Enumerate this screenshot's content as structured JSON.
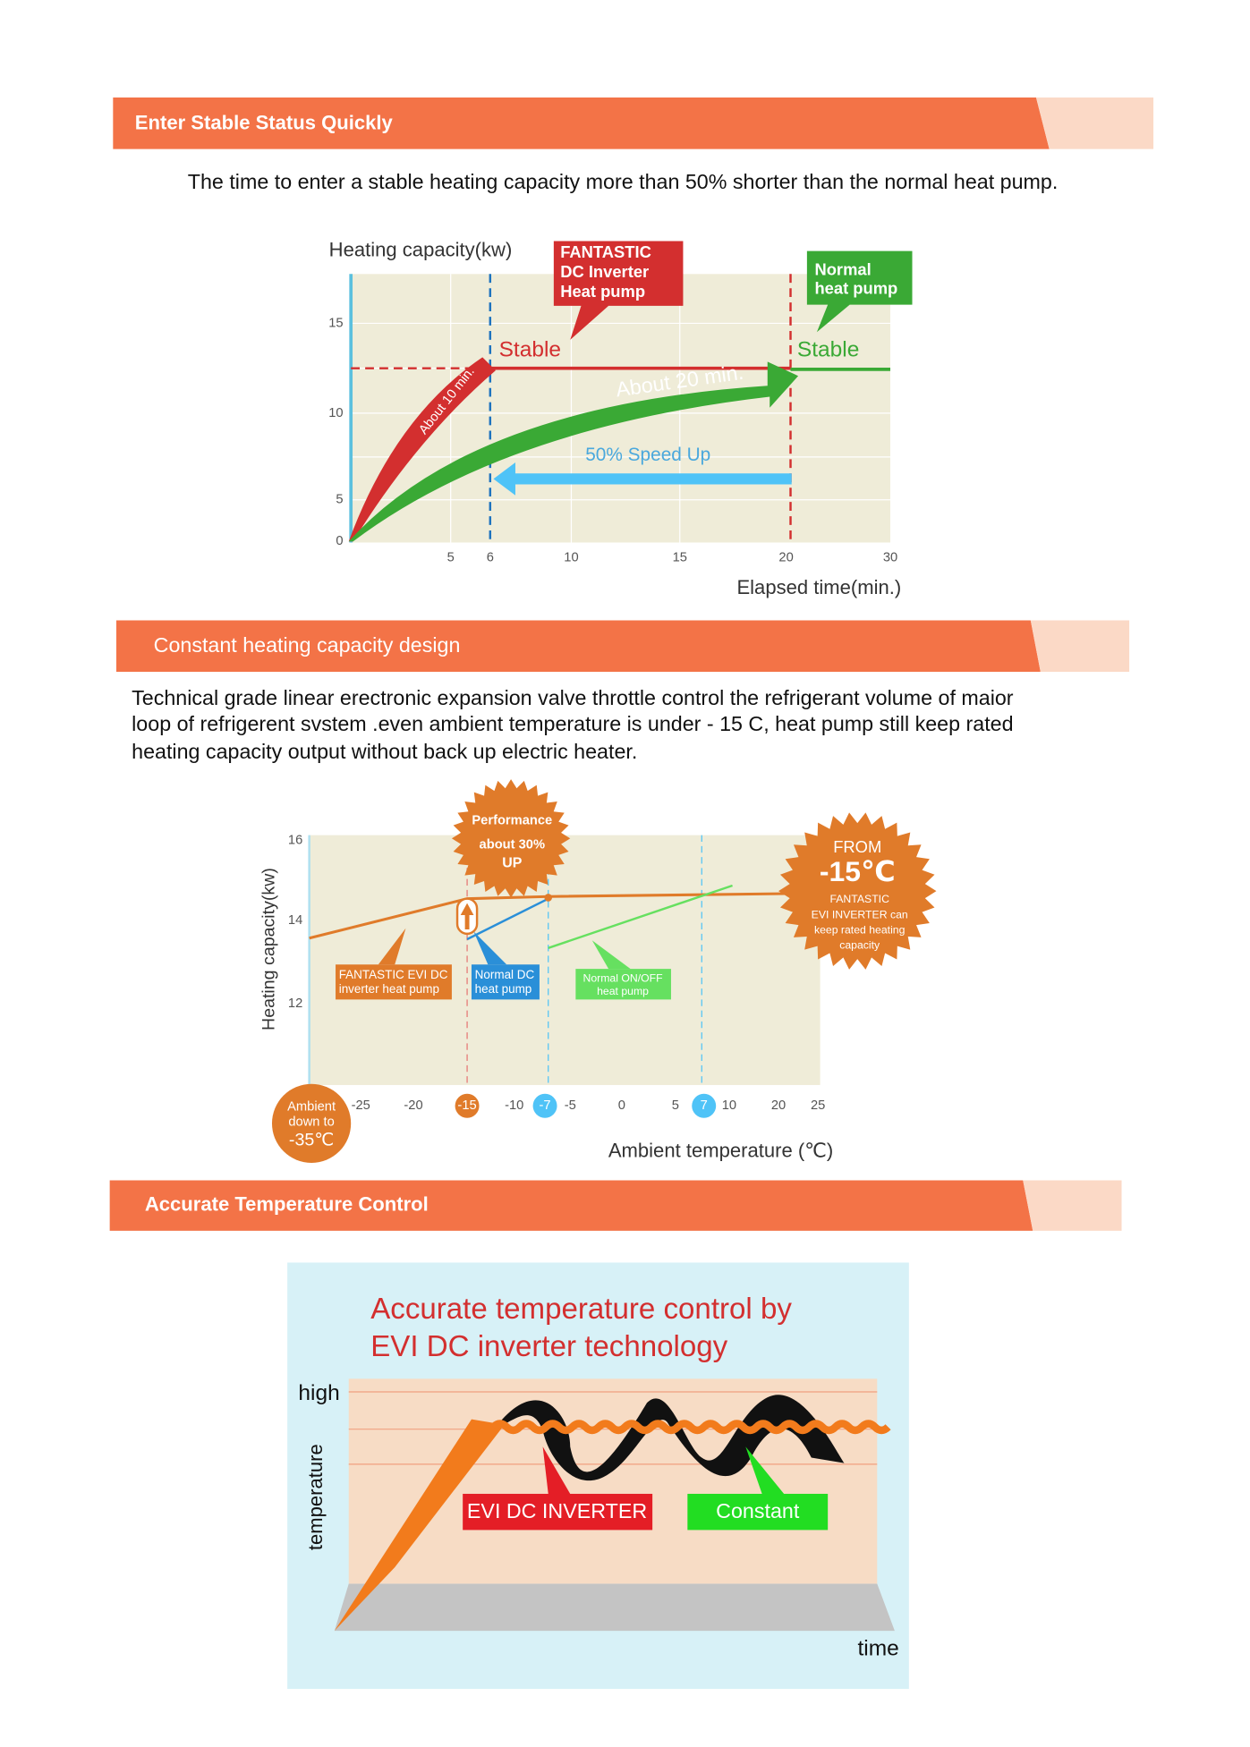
{
  "sections": [
    {
      "header": "Enter Stable Status Quickly",
      "text": [
        "The time to enter a stable heating capacity more than 50% shorter than the normal heat pump."
      ],
      "figure": {
        "y_label": "Heating capacity(kw)",
        "x_label": "Elapsed time(min.)",
        "yticks": [
          "15",
          "10",
          "5",
          "0"
        ],
        "xticks": [
          "5",
          "6",
          "10",
          "15",
          "20",
          "30"
        ],
        "callout_inverter": [
          "FANTASTIC",
          "DC Inverter",
          "Heat pump"
        ],
        "callout_normal": [
          "Normal",
          "heat pump"
        ],
        "stable_labels": [
          "Stable",
          "Stable"
        ],
        "arrow_red": "About 10 min.",
        "arrow_green": "About 20 min.",
        "speed": "50% Speed Up"
      }
    },
    {
      "header": "Constant heating capacity design",
      "text": [
        "Technical grade linear erectronic expansion valve throttle control the refrigerant volume of maior",
        "loop of refrigerent svstem  .even ambient temperature is under - 15 C, heat pump still keep rated",
        "heating capacity output without back up electric heater."
      ],
      "figure": {
        "y_label": "Heating capacity(kw)",
        "x_label": "Ambient  temperature (℃)",
        "yticks": [
          "16",
          "14",
          "12"
        ],
        "xticks": [
          "-25",
          "-20",
          "-15",
          "-10",
          "-7",
          "-5",
          "0",
          "5",
          "7",
          "10",
          "20",
          "25"
        ],
        "badge_performance": [
          "Performance",
          "about 30%",
          "UP"
        ],
        "badge_from": [
          "FROM",
          "-15℃",
          "FANTASTIC",
          "EVI INVERTER can",
          "keep rated heating",
          "capacity"
        ],
        "label_evi": [
          "FANTASTIC EVI DC",
          "inverter heat pump"
        ],
        "label_normal_dc": [
          "Normal DC",
          "heat pump"
        ],
        "label_onoff": [
          "Normal ON/OFF",
          "heat pump"
        ],
        "ambient": [
          "Ambient",
          "down to",
          "-35℃"
        ]
      }
    },
    {
      "header": "Accurate Temperature Control",
      "text": [],
      "figure": {
        "title": [
          "Accurate temperature control by",
          "EVI DC inverter technology"
        ],
        "y_high": "high",
        "y_label": "temperature",
        "x_label": "time",
        "label_evi": "EVI DC INVERTER",
        "label_constant": "Constant"
      }
    }
  ]
}
